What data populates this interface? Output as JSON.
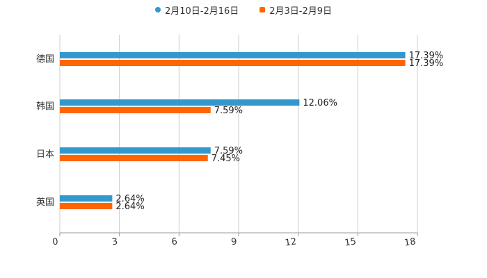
{
  "legend": [
    {
      "label": "2月10日-2月16日",
      "color": "#3399cc",
      "marker": "circle"
    },
    {
      "label": "2月3日-2月9日",
      "color": "#ff6600",
      "marker": "square"
    }
  ],
  "chart_data": {
    "type": "bar",
    "orientation": "horizontal",
    "title": "",
    "xlabel": "",
    "ylabel": "",
    "categories": [
      "德国",
      "韩国",
      "日本",
      "英国"
    ],
    "series": [
      {
        "name": "2月10日-2月16日",
        "color": "#3399cc",
        "values": [
          17.39,
          12.06,
          7.59,
          2.64
        ],
        "labels": [
          "17.39%",
          "12.06%",
          "7.59%",
          "2.64%"
        ]
      },
      {
        "name": "2月3日-2月9日",
        "color": "#ff6600",
        "values": [
          17.39,
          7.59,
          7.45,
          2.64
        ],
        "labels": [
          "17.39%",
          "7.59%",
          "7.45%",
          "2.64%"
        ]
      }
    ],
    "xlim": [
      0,
      18
    ],
    "xticks": [
      "0",
      "3",
      "6",
      "9",
      "12",
      "15",
      "18"
    ],
    "grid": true,
    "legend_position": "top"
  }
}
